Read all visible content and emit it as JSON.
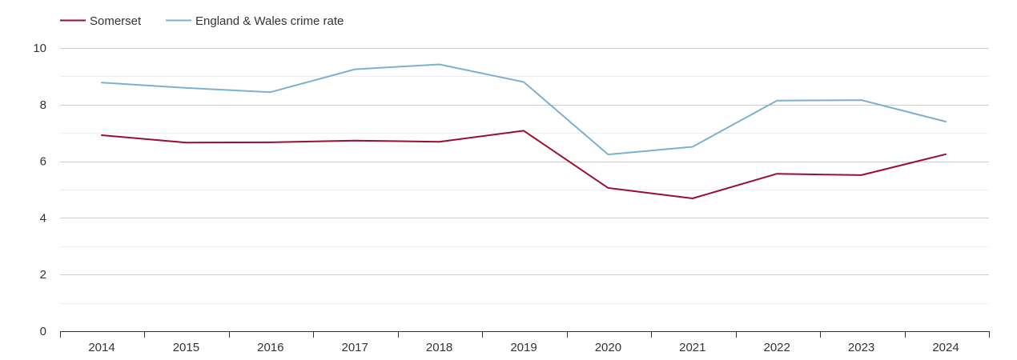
{
  "chart_data": {
    "type": "line",
    "title": "",
    "xlabel": "",
    "ylabel": "",
    "categories": [
      "2014",
      "2015",
      "2016",
      "2017",
      "2018",
      "2019",
      "2020",
      "2021",
      "2022",
      "2023",
      "2024"
    ],
    "ylim": [
      0,
      10
    ],
    "yticks": [
      0,
      2,
      4,
      6,
      8,
      10
    ],
    "grid": true,
    "legend_position": "top-left",
    "series": [
      {
        "name": "Somerset",
        "color": "#9b0d31",
        "values": [
          6.92,
          6.66,
          6.67,
          6.73,
          6.69,
          7.08,
          5.06,
          4.69,
          5.56,
          5.51,
          6.25
        ]
      },
      {
        "name": "England & Wales crime rate",
        "color": "#7cb0d0",
        "values": [
          8.78,
          8.59,
          8.44,
          9.25,
          9.42,
          8.8,
          6.24,
          6.51,
          8.14,
          8.16,
          7.4
        ]
      }
    ]
  }
}
